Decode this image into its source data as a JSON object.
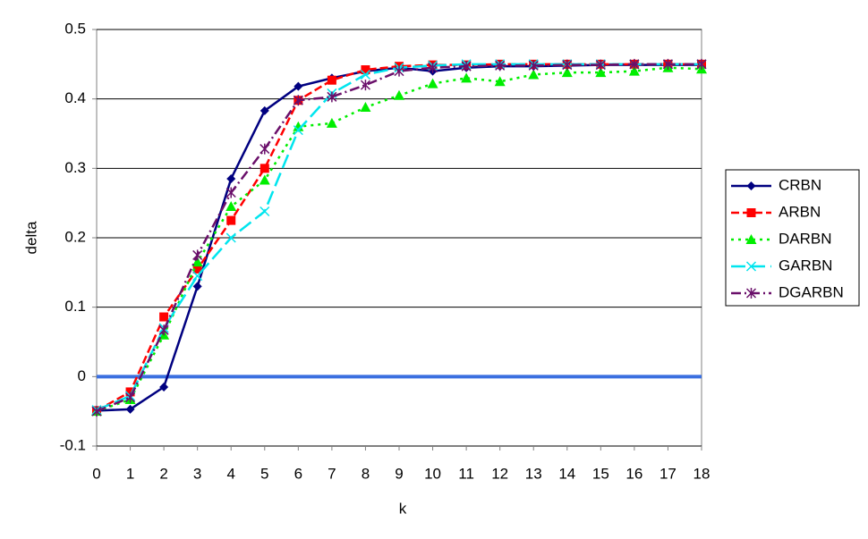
{
  "chart_data": {
    "type": "line",
    "x_label": "k",
    "y_label": "delta",
    "categories": [
      "0",
      "1",
      "2",
      "3",
      "4",
      "5",
      "6",
      "7",
      "8",
      "9",
      "10",
      "11",
      "12",
      "13",
      "14",
      "15",
      "16",
      "17",
      "18"
    ],
    "ylim": [
      -0.1,
      0.5
    ],
    "yticks": [
      0.5,
      0.4,
      0.3,
      0.2,
      0.1,
      0,
      -0.1
    ],
    "grid": true,
    "zero_line_color": "#3a6fe0",
    "legend": "right",
    "series": [
      {
        "name": "CRBN",
        "color": "#000080",
        "marker": "diamond",
        "dash": "solid",
        "values": [
          -0.049,
          -0.047,
          -0.015,
          0.13,
          0.285,
          0.383,
          0.418,
          0.43,
          0.44,
          0.445,
          0.44,
          0.445,
          0.447,
          0.447,
          0.448,
          0.449,
          0.449,
          0.449,
          0.449
        ]
      },
      {
        "name": "ARBN",
        "color": "#ff0000",
        "marker": "square",
        "dash": "dashed",
        "values": [
          -0.049,
          -0.022,
          0.086,
          0.155,
          0.225,
          0.3,
          0.398,
          0.427,
          0.442,
          0.447,
          0.449,
          0.449,
          0.45,
          0.45,
          0.45,
          0.45,
          0.45,
          0.45,
          0.45
        ]
      },
      {
        "name": "DARBN",
        "color": "#00ee00",
        "marker": "triangle",
        "dash": "dotted",
        "values": [
          -0.05,
          -0.033,
          0.06,
          0.165,
          0.245,
          0.283,
          0.36,
          0.365,
          0.388,
          0.405,
          0.422,
          0.43,
          0.425,
          0.435,
          0.438,
          0.438,
          0.44,
          0.445,
          0.443
        ]
      },
      {
        "name": "GARBN",
        "color": "#00e5ee",
        "marker": "x",
        "dash": "longdash",
        "values": [
          -0.048,
          -0.028,
          0.07,
          0.145,
          0.2,
          0.238,
          0.355,
          0.408,
          0.435,
          0.445,
          0.448,
          0.45,
          0.45,
          0.45,
          0.45,
          0.45,
          0.45,
          0.45,
          0.45
        ]
      },
      {
        "name": "DGARBN",
        "color": "#6a0f6a",
        "marker": "star",
        "dash": "dashdot",
        "values": [
          -0.05,
          -0.03,
          0.067,
          0.175,
          0.265,
          0.328,
          0.398,
          0.403,
          0.42,
          0.44,
          0.445,
          0.447,
          0.448,
          0.448,
          0.449,
          0.449,
          0.45,
          0.45,
          0.45
        ]
      }
    ]
  }
}
